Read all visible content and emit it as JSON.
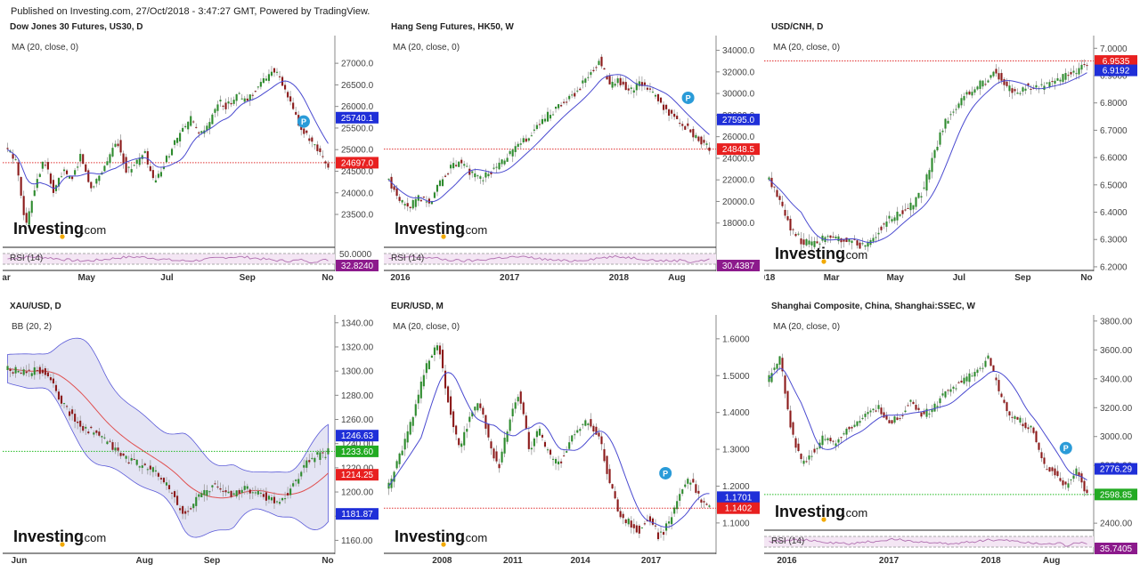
{
  "published": "Published on Investing.com, 27/Oct/2018 - 3:47:27 GMT, Powered by TradingView.",
  "logo": {
    "text_main": "Investing",
    "text_suffix": ".com"
  },
  "colors": {
    "up": "#2e8b2e",
    "down": "#8b1a1a",
    "ma": "#4a4ad0",
    "rsi_bg": "#f4e6f4",
    "rsi_line": "#b070b0",
    "axis": "#555555",
    "grid_line": "#e03030",
    "grid_green": "#22bb22",
    "badge_p": "#2a9bd8"
  },
  "chart_data": [
    {
      "id": "dow",
      "type": "candlestick",
      "title": "Dow Jones 30 Futures, US30, D",
      "indicator": "MA (20, close, 0)",
      "ylim": [
        22800,
        27600
      ],
      "yticks": [
        "27000.0",
        "26500.0",
        "26000.0",
        "25500.0",
        "25000.0",
        "24500.0",
        "24000.0",
        "23500.0"
      ],
      "ytick_values": [
        27000,
        26500,
        26000,
        25500,
        25000,
        24500,
        24000,
        23500
      ],
      "xticks": [
        "ar",
        "May",
        "Jul",
        "Sep",
        "No"
      ],
      "x_positions": [
        0.0,
        0.25,
        0.5,
        0.75,
        1.0
      ],
      "path": [
        25000,
        24700,
        23200,
        24200,
        24800,
        24000,
        24500,
        24300,
        24900,
        24100,
        24400,
        24800,
        25200,
        24500,
        24700,
        24900,
        24200,
        24600,
        25100,
        25400,
        25700,
        25300,
        25600,
        26100,
        26000,
        26300,
        26100,
        26400,
        26600,
        26900,
        26500,
        26000,
        25500,
        25200,
        24900,
        24600
      ],
      "hlines": [
        {
          "value": 24697,
          "style": "red"
        }
      ],
      "price_labels": [
        {
          "text": "25740.1",
          "value": 25740.1,
          "color": "#1f2fd8"
        },
        {
          "text": "24697.0",
          "value": 24697.0,
          "color": "#e82020"
        }
      ],
      "badge": {
        "value": 25650,
        "pos": 0.92
      },
      "rsi": {
        "label": "RSI (14)",
        "level": "50.0000",
        "value": "32.8240",
        "value_color": "#8c1a8c"
      }
    },
    {
      "id": "hangseng",
      "type": "candlestick",
      "title": "Hang Seng Futures, HK50, W",
      "indicator": "MA (20, close, 0)",
      "ylim": [
        16000,
        35200
      ],
      "yticks": [
        "34000.0",
        "32000.0",
        "30000.0",
        "28000.0",
        "26000.0",
        "24000.0",
        "22000.0",
        "20000.0",
        "18000.0"
      ],
      "ytick_values": [
        34000,
        32000,
        30000,
        28000,
        26000,
        24000,
        22000,
        20000,
        18000
      ],
      "xticks": [
        "2016",
        "2017",
        "2018",
        "Aug"
      ],
      "x_positions": [
        0.04,
        0.38,
        0.72,
        0.9
      ],
      "path": [
        22000,
        20200,
        19300,
        20500,
        19800,
        21500,
        23000,
        23700,
        22800,
        22000,
        22600,
        23500,
        24300,
        25200,
        26000,
        27200,
        28100,
        28800,
        29500,
        30500,
        31800,
        33100,
        30800,
        31200,
        30200,
        30900,
        30400,
        29200,
        28200,
        27300,
        26600,
        25600,
        24848
      ],
      "hlines": [
        {
          "value": 24848.5,
          "style": "red"
        }
      ],
      "price_labels": [
        {
          "text": "27595.0",
          "value": 27595.0,
          "color": "#1f2fd8"
        },
        {
          "text": "24848.5",
          "value": 24848.5,
          "color": "#e82020"
        }
      ],
      "badge": {
        "value": 29600,
        "pos": 0.93
      },
      "rsi": {
        "label": "RSI (14)",
        "level": "",
        "value": "30.4387",
        "value_color": "#8c1a8c"
      }
    },
    {
      "id": "usdcnh",
      "type": "candlestick",
      "title": "USD/CNH, D",
      "indicator": "MA (20, close, 0)",
      "ylim": [
        6.19,
        7.04
      ],
      "yticks": [
        "7.0000",
        "6.9000",
        "6.8000",
        "6.7000",
        "6.6000",
        "6.5000",
        "6.4000",
        "6.3000",
        "6.2000"
      ],
      "ytick_values": [
        7.0,
        6.9,
        6.8,
        6.7,
        6.6,
        6.5,
        6.4,
        6.3,
        6.2
      ],
      "xticks": [
        "018",
        "Mar",
        "May",
        "Jul",
        "Sep",
        "No"
      ],
      "x_positions": [
        0.0,
        0.2,
        0.4,
        0.6,
        0.8,
        1.0
      ],
      "path": [
        6.52,
        6.45,
        6.35,
        6.3,
        6.28,
        6.3,
        6.32,
        6.29,
        6.3,
        6.27,
        6.3,
        6.35,
        6.38,
        6.4,
        6.43,
        6.48,
        6.6,
        6.72,
        6.78,
        6.82,
        6.85,
        6.88,
        6.92,
        6.86,
        6.84,
        6.86,
        6.85,
        6.87,
        6.88,
        6.9,
        6.92,
        6.95
      ],
      "hlines": [
        {
          "value": 6.9535,
          "style": "red"
        }
      ],
      "price_labels": [
        {
          "text": "6.9535",
          "value": 6.9535,
          "color": "#e82020"
        },
        {
          "text": "6.9192",
          "value": 6.9192,
          "color": "#1f2fd8"
        }
      ],
      "badge": null,
      "rsi": null
    },
    {
      "id": "xauusd",
      "type": "candlestick",
      "title": "XAU/USD, D",
      "indicator": "BB (20, 2)",
      "ylim": [
        1150,
        1345
      ],
      "yticks": [
        "1340.00",
        "1320.00",
        "1300.00",
        "1280.00",
        "1260.00",
        "1240.00",
        "1220.00",
        "1200.00",
        "1180.00",
        "1160.00"
      ],
      "ytick_values": [
        1340,
        1320,
        1300,
        1280,
        1260,
        1240,
        1220,
        1200,
        1180,
        1160
      ],
      "xticks": [
        "Jun",
        "Aug",
        "Sep",
        "No"
      ],
      "x_positions": [
        0.04,
        0.43,
        0.64,
        1.0
      ],
      "path": [
        1302,
        1300,
        1298,
        1302,
        1295,
        1278,
        1265,
        1255,
        1250,
        1245,
        1238,
        1230,
        1225,
        1222,
        1218,
        1210,
        1196,
        1180,
        1192,
        1200,
        1205,
        1200,
        1198,
        1203,
        1201,
        1195,
        1192,
        1198,
        1212,
        1225,
        1230,
        1233
      ],
      "hlines": [
        {
          "value": 1233.6,
          "style": "green"
        }
      ],
      "price_labels": [
        {
          "text": "1246.63",
          "value": 1246.63,
          "color": "#1f2fd8"
        },
        {
          "text": "1233.60",
          "value": 1233.6,
          "color": "#22aa22"
        },
        {
          "text": "1214.25",
          "value": 1214.25,
          "color": "#e82020"
        },
        {
          "text": "1181.87",
          "value": 1181.87,
          "color": "#1f2fd8"
        }
      ],
      "badge": null,
      "bollinger": true,
      "rsi": null
    },
    {
      "id": "eurusd",
      "type": "candlestick",
      "title": "EUR/USD, M",
      "indicator": "MA (20, close, 0)",
      "ylim": [
        1.02,
        1.66
      ],
      "yticks": [
        "1.6000",
        "1.5000",
        "1.4000",
        "1.3000",
        "1.2000",
        "1.1000"
      ],
      "ytick_values": [
        1.6,
        1.5,
        1.4,
        1.3,
        1.2,
        1.1
      ],
      "xticks": [
        "2008",
        "2011",
        "2014",
        "2017"
      ],
      "x_positions": [
        0.17,
        0.39,
        0.6,
        0.82
      ],
      "path": [
        1.2,
        1.28,
        1.36,
        1.45,
        1.55,
        1.58,
        1.42,
        1.3,
        1.38,
        1.44,
        1.32,
        1.25,
        1.38,
        1.46,
        1.3,
        1.35,
        1.28,
        1.26,
        1.32,
        1.36,
        1.38,
        1.33,
        1.22,
        1.12,
        1.1,
        1.08,
        1.12,
        1.06,
        1.1,
        1.18,
        1.22,
        1.17,
        1.14
      ],
      "hlines": [
        {
          "value": 1.1402,
          "style": "red"
        }
      ],
      "price_labels": [
        {
          "text": "1.1701",
          "value": 1.1701,
          "color": "#1f2fd8"
        },
        {
          "text": "1.1402",
          "value": 1.1402,
          "color": "#e82020"
        }
      ],
      "badge": {
        "value": 1.235,
        "pos": 0.86
      },
      "rsi": null
    },
    {
      "id": "shanghai",
      "type": "candlestick",
      "title": "Shanghai Composite, China, Shanghai:SSEC, W",
      "indicator": "MA (20, close, 0)",
      "ylim": [
        2370,
        3830
      ],
      "yticks": [
        "3800.00",
        "3600.00",
        "3400.00",
        "3200.00",
        "3000.00",
        "2800.00",
        "2600.00",
        "2400.00"
      ],
      "ytick_values": [
        3800,
        3600,
        3400,
        3200,
        3000,
        2800,
        2600,
        2400
      ],
      "xticks": [
        "2016",
        "2017",
        "2018",
        "Aug"
      ],
      "x_positions": [
        0.06,
        0.38,
        0.7,
        0.89
      ],
      "path": [
        3400,
        3550,
        3050,
        2800,
        2900,
        3000,
        2950,
        3050,
        3100,
        3150,
        3200,
        3100,
        3150,
        3250,
        3150,
        3200,
        3300,
        3350,
        3400,
        3450,
        3550,
        3300,
        3150,
        3100,
        3050,
        2800,
        2750,
        2650,
        2780,
        2600
      ],
      "hlines": [
        {
          "value": 2598.85,
          "style": "green"
        }
      ],
      "price_labels": [
        {
          "text": "2776.29",
          "value": 2776.29,
          "color": "#1f2fd8"
        },
        {
          "text": "2598.85",
          "value": 2598.85,
          "color": "#22aa22"
        }
      ],
      "badge": {
        "value": 2920,
        "pos": 0.93
      },
      "rsi": {
        "label": "RSI (14)",
        "level": "",
        "value": "35.7405",
        "value_color": "#8c1a8c"
      }
    }
  ]
}
